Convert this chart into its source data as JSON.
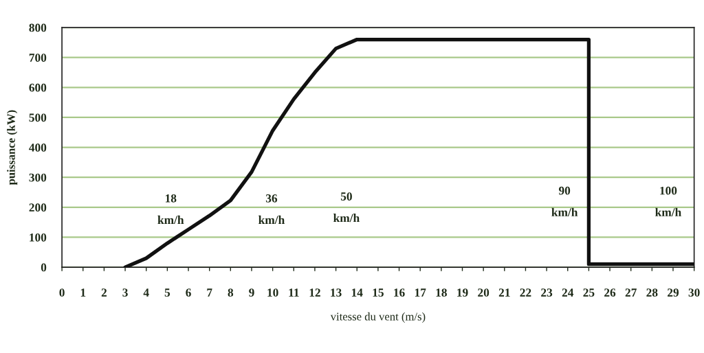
{
  "chart_data": {
    "type": "line",
    "xlabel": "vitesse du vent (m/s)",
    "ylabel": "puissance (kW)",
    "xlim": [
      0,
      30
    ],
    "xticks": [
      0,
      1,
      2,
      3,
      4,
      5,
      6,
      7,
      8,
      9,
      10,
      11,
      12,
      13,
      14,
      15,
      16,
      17,
      18,
      19,
      20,
      21,
      22,
      23,
      24,
      25,
      26,
      27,
      28,
      29,
      30
    ],
    "ylim": [
      0,
      800
    ],
    "yticks": [
      0,
      100,
      200,
      300,
      400,
      500,
      600,
      700,
      800
    ],
    "grid": "y",
    "marker": "none",
    "line_style": "solid",
    "x": [
      3,
      4,
      5,
      6,
      7,
      8,
      9,
      10,
      11,
      12,
      13,
      14,
      25,
      25,
      30
    ],
    "series": [
      {
        "color": "#111111",
        "values": [
          0,
          30,
          80,
          126,
          172,
          223,
          318,
          456,
          561,
          650,
          730,
          760,
          760,
          10,
          10
        ]
      }
    ],
    "annotations": [
      "18\nkm/h",
      "36\nkm/h",
      "50\nkm/h",
      "90\nkm/h",
      "100\nkm/h"
    ]
  }
}
